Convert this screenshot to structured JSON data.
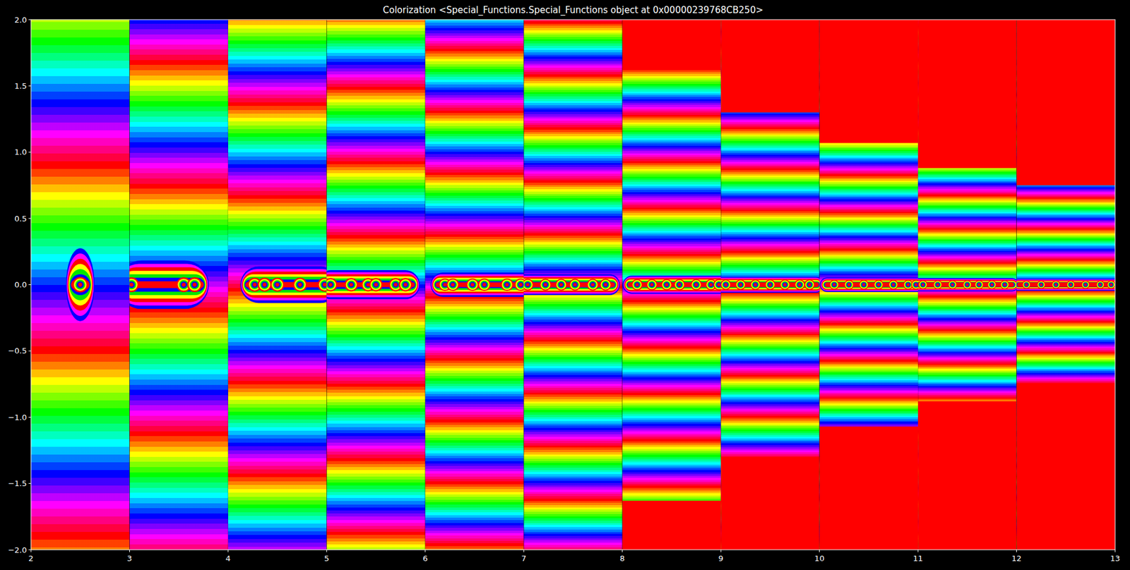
{
  "chart_data": {
    "type": "domain_coloring",
    "title": "Colorization <Special_Functions.Special_Functions object at 0x00000239768CB250>",
    "xlim": [
      2,
      13
    ],
    "ylim": [
      -2,
      2
    ],
    "xticks": [
      2,
      3,
      4,
      5,
      6,
      7,
      8,
      9,
      10,
      11,
      12,
      13
    ],
    "yticks": [
      {
        "value": -2,
        "label": "−2.0"
      },
      {
        "value": -1.5,
        "label": "−1.5"
      },
      {
        "value": -1,
        "label": "−1.0"
      },
      {
        "value": -0.5,
        "label": "−0.5"
      },
      {
        "value": 0,
        "label": "0.0"
      },
      {
        "value": 0.5,
        "label": "0.5"
      },
      {
        "value": 1,
        "label": "1.0"
      },
      {
        "value": 1.5,
        "label": "1.5"
      },
      {
        "value": 2,
        "label": "2.0"
      }
    ],
    "panels": [
      {
        "x": [
          2,
          3
        ],
        "zeros": [
          2.5
        ],
        "saturation": null
      },
      {
        "x": [
          3,
          4
        ],
        "zeros": [
          3.02,
          3.55,
          3.66
        ],
        "saturation": null
      },
      {
        "x": [
          4,
          5
        ],
        "zeros": [
          4.27,
          4.37,
          4.5,
          4.73,
          4.98
        ],
        "saturation": null
      },
      {
        "x": [
          5,
          6
        ],
        "zeros": [
          5.04,
          5.25,
          5.42,
          5.5,
          5.7,
          5.8
        ],
        "saturation": null
      },
      {
        "x": [
          6,
          7
        ],
        "zeros": [
          6.2,
          6.28,
          6.48,
          6.6,
          6.83,
          6.97
        ],
        "saturation": null
      },
      {
        "x": [
          7,
          8
        ],
        "zeros": [
          7.04,
          7.22,
          7.38,
          7.52,
          7.7,
          7.83
        ],
        "saturation": null
      },
      {
        "x": [
          8,
          9
        ],
        "zeros": [
          8.15,
          8.3,
          8.45,
          8.58,
          8.75,
          8.9,
          8.98
        ],
        "saturation": 1.63
      },
      {
        "x": [
          9,
          10
        ],
        "zeros": [
          9.05,
          9.2,
          9.35,
          9.5,
          9.65,
          9.8,
          9.9
        ],
        "saturation": 1.3
      },
      {
        "x": [
          10,
          11
        ],
        "zeros": [
          10.15,
          10.3,
          10.45,
          10.6,
          10.75,
          10.9,
          10.98
        ],
        "saturation": 1.07
      },
      {
        "x": [
          11,
          12
        ],
        "zeros": [
          11.05,
          11.2,
          11.35,
          11.5,
          11.62,
          11.75,
          11.88
        ],
        "saturation": 0.88
      },
      {
        "x": [
          12,
          13
        ],
        "zeros": [
          12.1,
          12.25,
          12.4,
          12.55,
          12.7,
          12.85,
          12.96
        ],
        "saturation": 0.75
      }
    ]
  }
}
